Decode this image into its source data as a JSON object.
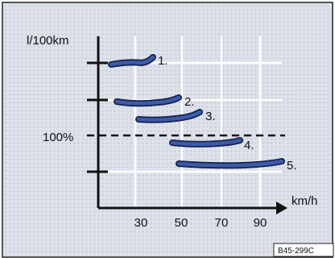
{
  "diagram": {
    "y_axis_label": "l/100km",
    "x_axis_label": "km/h",
    "x_tick_labels": [
      "30",
      "50",
      "70",
      "90"
    ],
    "reference_line_label": "100%",
    "curves": [
      {
        "label": "1."
      },
      {
        "label": "2."
      },
      {
        "label": "3."
      },
      {
        "label": "4."
      },
      {
        "label": "5."
      }
    ],
    "figure_code": "B45-299C",
    "colors": {
      "background": "#dde1ea",
      "dot": "#b9c0d0",
      "grid": "#ffffff",
      "axis": "#111111",
      "curve_fill": "#3d5aa8",
      "curve_stroke": "#13224f",
      "text": "#111111"
    }
  }
}
